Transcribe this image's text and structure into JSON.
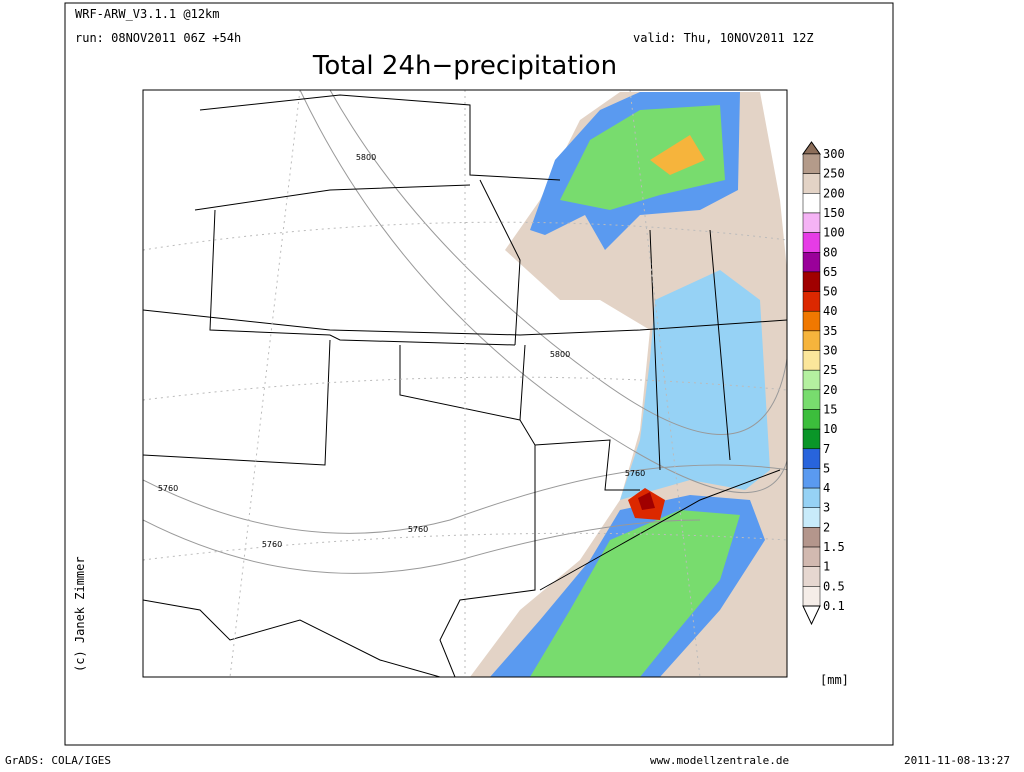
{
  "header": {
    "model": "WRF-ARW_V3.1.1 @12km",
    "run": "run: 08NOV2011 06Z +54h",
    "valid": "valid: Thu, 10NOV2011 12Z"
  },
  "title": "Total 24h−precipitation",
  "contour_labels": [
    "5800",
    "5800",
    "5760",
    "5760",
    "5760",
    "5760"
  ],
  "legend": {
    "unit": "[mm]",
    "labels": [
      300,
      250,
      200,
      150,
      100,
      80,
      65,
      50,
      40,
      35,
      30,
      25,
      20,
      15,
      10,
      7,
      5,
      4,
      3,
      2,
      1.5,
      1,
      0.5,
      0.1
    ],
    "colors": [
      "#8c6e5a",
      "#b49b8a",
      "#e3d3c6",
      "#ffffff",
      "#f5b3f5",
      "#e63ce6",
      "#9a009a",
      "#a00000",
      "#dc2800",
      "#f07800",
      "#f6b43c",
      "#fbe69b",
      "#b4f0a0",
      "#78dc6e",
      "#3cbe3c",
      "#0a9628",
      "#2864dc",
      "#5a9af0",
      "#96d2f5",
      "#c8ebfa",
      "#b4968c",
      "#d2b9b0",
      "#e6d7d0",
      "#f5ede8",
      "#ffffff"
    ]
  },
  "copyright": "(c) Janek Zimmer",
  "footer": {
    "left": "GrADS: COLA/IGES",
    "center": "www.modellzentrale.de",
    "right": "2011-11-08-13:27"
  }
}
